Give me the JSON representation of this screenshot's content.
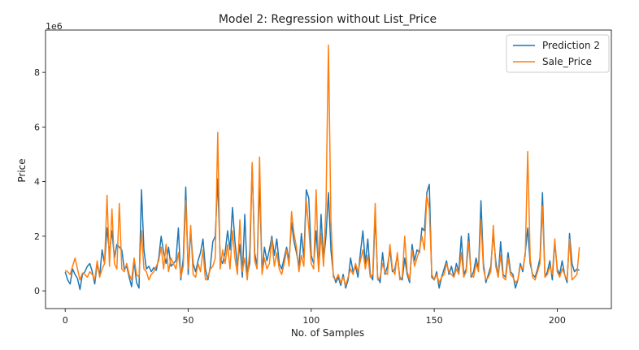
{
  "chart_data": {
    "type": "line",
    "title": "Model 2: Regression without List_Price",
    "xlabel": "No. of Samples",
    "ylabel": "Price",
    "y_offset_label": "1e6",
    "xlim": [
      -8,
      222
    ],
    "ylim": [
      -0.65,
      9.55
    ],
    "x_ticks": [
      0,
      50,
      100,
      150,
      200
    ],
    "y_ticks": [
      0,
      2,
      4,
      6,
      8
    ],
    "grid": false,
    "legend_position": "top-right",
    "series": [
      {
        "name": "Prediction 2",
        "color": "#1f77b4",
        "values": [
          0.7,
          0.4,
          0.25,
          0.8,
          0.6,
          0.45,
          0.05,
          0.6,
          0.7,
          0.9,
          1.0,
          0.7,
          0.25,
          1.0,
          0.55,
          1.5,
          1.0,
          2.3,
          1.4,
          2.2,
          1.2,
          1.7,
          1.6,
          1.5,
          0.8,
          0.9,
          0.5,
          0.15,
          1.1,
          0.3,
          0.1,
          3.7,
          1.5,
          0.8,
          0.9,
          0.7,
          0.85,
          0.75,
          1.2,
          2.0,
          1.4,
          1.0,
          1.6,
          0.9,
          1.0,
          1.1,
          2.3,
          0.4,
          1.2,
          3.8,
          0.6,
          2.2,
          1.0,
          0.7,
          1.1,
          1.4,
          1.9,
          0.8,
          0.4,
          0.9,
          1.8,
          2.0,
          4.1,
          1.2,
          1.0,
          1.4,
          2.2,
          1.5,
          3.05,
          1.8,
          0.9,
          1.7,
          0.5,
          2.8,
          0.6,
          1.0,
          4.6,
          1.4,
          0.9,
          4.0,
          0.7,
          1.6,
          1.1,
          1.5,
          2.0,
          1.3,
          1.9,
          1.0,
          0.8,
          1.2,
          1.6,
          1.1,
          2.5,
          1.8,
          1.4,
          0.9,
          2.1,
          1.2,
          3.7,
          3.4,
          1.3,
          1.0,
          2.2,
          0.8,
          2.8,
          1.1,
          2.0,
          3.6,
          1.5,
          0.6,
          0.3,
          0.5,
          0.2,
          0.6,
          0.1,
          0.4,
          1.2,
          0.7,
          0.9,
          0.5,
          1.4,
          2.2,
          1.0,
          1.9,
          0.6,
          0.4,
          2.8,
          0.5,
          0.3,
          1.4,
          0.6,
          0.9,
          1.5,
          0.7,
          0.8,
          1.3,
          0.5,
          0.4,
          1.2,
          0.6,
          0.3,
          1.7,
          1.1,
          1.5,
          1.4,
          2.3,
          2.2,
          3.6,
          3.9,
          0.5,
          0.4,
          0.7,
          0.1,
          0.5,
          0.8,
          1.1,
          0.6,
          0.9,
          0.5,
          1.0,
          0.7,
          2.0,
          0.6,
          0.8,
          2.1,
          0.5,
          0.7,
          1.2,
          0.8,
          3.3,
          1.0,
          0.3,
          0.6,
          0.9,
          2.1,
          1.1,
          0.5,
          1.8,
          0.6,
          0.5,
          1.4,
          0.7,
          0.6,
          0.1,
          0.4,
          1.0,
          0.7,
          1.4,
          2.3,
          1.0,
          0.6,
          0.5,
          0.8,
          1.2,
          3.6,
          0.5,
          0.7,
          1.1,
          0.4,
          1.8,
          0.8,
          0.6,
          1.1,
          0.6,
          0.3,
          2.1,
          1.0,
          0.7,
          0.8,
          0.75
        ]
      },
      {
        "name": "Sale_Price",
        "color": "#ff7f0e",
        "values": [
          0.75,
          0.7,
          0.6,
          0.9,
          1.2,
          0.8,
          0.4,
          0.65,
          0.6,
          0.5,
          0.7,
          0.6,
          0.4,
          1.1,
          0.5,
          0.8,
          1.0,
          3.5,
          0.9,
          3.0,
          1.0,
          0.8,
          3.2,
          0.8,
          0.7,
          1.0,
          0.6,
          0.4,
          1.2,
          0.6,
          0.5,
          2.2,
          0.8,
          0.7,
          0.4,
          0.6,
          0.7,
          0.9,
          1.1,
          1.6,
          0.8,
          1.7,
          0.7,
          1.2,
          1.0,
          0.8,
          1.4,
          0.5,
          0.9,
          3.3,
          0.8,
          2.4,
          0.6,
          0.5,
          1.0,
          0.7,
          1.5,
          0.4,
          0.5,
          0.8,
          0.9,
          1.2,
          5.8,
          0.8,
          1.5,
          1.0,
          1.7,
          0.8,
          2.2,
          1.2,
          0.6,
          2.6,
          0.7,
          1.2,
          0.4,
          1.5,
          4.7,
          1.1,
          0.8,
          4.9,
          0.6,
          1.2,
          0.8,
          1.0,
          1.9,
          0.9,
          1.4,
          0.8,
          0.6,
          1.0,
          1.5,
          0.9,
          2.9,
          2.1,
          1.6,
          0.7,
          1.3,
          0.9,
          3.3,
          2.3,
          1.0,
          0.8,
          3.7,
          0.7,
          2.1,
          0.9,
          3.1,
          9.0,
          2.6,
          0.5,
          0.4,
          0.6,
          0.3,
          0.5,
          0.2,
          0.5,
          0.8,
          0.6,
          1.0,
          0.7,
          1.1,
          1.5,
          0.8,
          1.3,
          0.5,
          0.6,
          3.2,
          0.4,
          0.5,
          1.0,
          0.7,
          0.6,
          1.7,
          0.8,
          0.6,
          1.4,
          0.4,
          0.5,
          2.0,
          0.7,
          0.4,
          1.5,
          0.9,
          1.2,
          1.5,
          2.0,
          1.5,
          3.5,
          3.0,
          0.6,
          0.4,
          0.6,
          0.3,
          0.5,
          0.6,
          1.0,
          0.7,
          0.6,
          0.5,
          0.8,
          0.6,
          1.4,
          0.5,
          0.7,
          1.8,
          0.6,
          0.5,
          1.0,
          0.7,
          2.6,
          0.8,
          0.4,
          0.5,
          0.7,
          2.4,
          0.9,
          0.5,
          1.3,
          0.5,
          0.4,
          1.2,
          0.6,
          0.5,
          0.3,
          0.4,
          0.9,
          0.8,
          1.3,
          5.1,
          1.2,
          0.5,
          0.4,
          0.7,
          1.0,
          3.1,
          0.5,
          0.6,
          0.9,
          0.6,
          1.9,
          0.7,
          0.5,
          0.8,
          0.6,
          0.4,
          1.9,
          0.4,
          0.5,
          0.6,
          1.6
        ]
      }
    ]
  }
}
